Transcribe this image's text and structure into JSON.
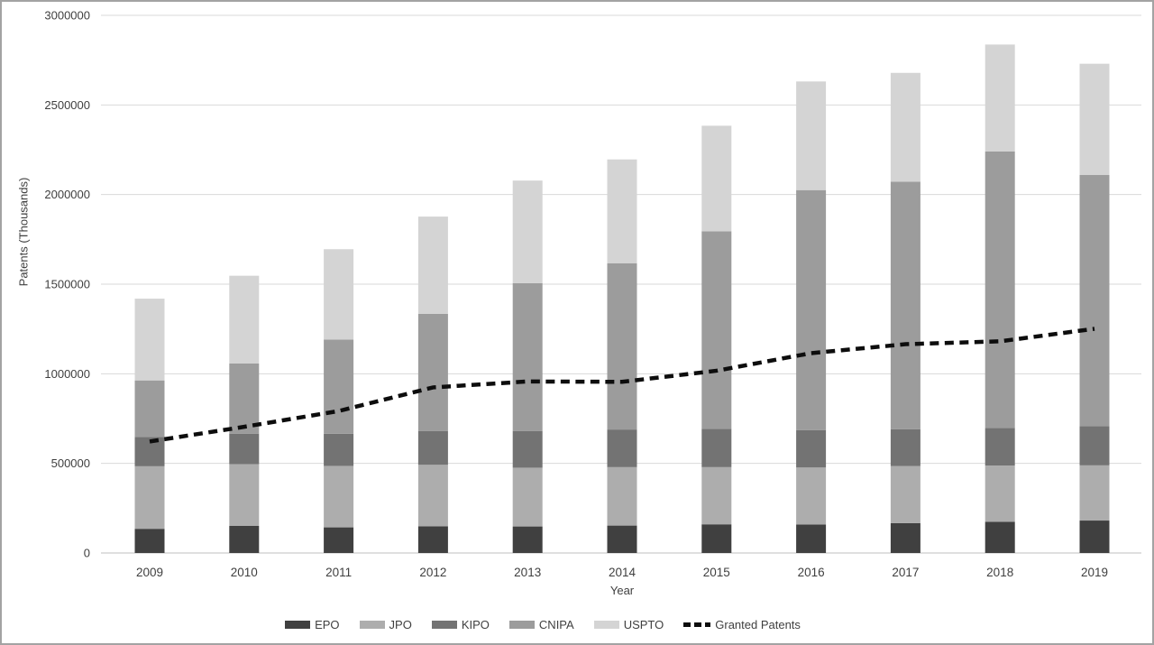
{
  "frame": {
    "background": "#ffffff",
    "border_color": "#a3a3a3"
  },
  "chart_data": {
    "type": "bar",
    "subtype": "stacked-columns-with-dashed-line",
    "title": "",
    "xlabel": "Year",
    "ylabel": "Patents (Thousands)",
    "categories": [
      "2009",
      "2010",
      "2011",
      "2012",
      "2013",
      "2014",
      "2015",
      "2016",
      "2017",
      "2018",
      "2019"
    ],
    "series": [
      {
        "name": "EPO",
        "color": "#404040",
        "values": [
          135000,
          151000,
          143000,
          149000,
          148000,
          153000,
          160000,
          159000,
          167000,
          174000,
          181000
        ]
      },
      {
        "name": "JPO",
        "color": "#adadad",
        "values": [
          349000,
          345000,
          343000,
          343000,
          328000,
          326000,
          319000,
          318000,
          318000,
          314000,
          308000
        ]
      },
      {
        "name": "KIPO",
        "color": "#737373",
        "values": [
          164000,
          170000,
          179000,
          189000,
          205000,
          210000,
          214000,
          209000,
          205000,
          210000,
          219000
        ]
      },
      {
        "name": "CNIPA",
        "color": "#9c9c9c",
        "values": [
          315000,
          391000,
          526000,
          653000,
          825000,
          928000,
          1102000,
          1339000,
          1382000,
          1542000,
          1401000
        ]
      },
      {
        "name": "USPTO",
        "color": "#d4d4d4",
        "values": [
          456000,
          490000,
          504000,
          543000,
          572000,
          579000,
          589000,
          606000,
          607000,
          597000,
          621000
        ]
      }
    ],
    "line_series": {
      "name": "Granted Patents",
      "color": "#0d0d0d",
      "style": "dashed",
      "values": [
        622000,
        704000,
        792000,
        924000,
        957000,
        955000,
        1017000,
        1115000,
        1165000,
        1181000,
        1251000
      ]
    },
    "ylim": [
      0,
      3000000
    ],
    "ytick_labels": [
      "0",
      "500000",
      "1000000",
      "1500000",
      "2000000",
      "2500000",
      "3000000"
    ],
    "grid": true,
    "gridline_color": "#d9d9d9",
    "axisline_color": "#bfbfbf",
    "tick_text_color": "#3f3f3f",
    "legend_position": "bottom"
  }
}
